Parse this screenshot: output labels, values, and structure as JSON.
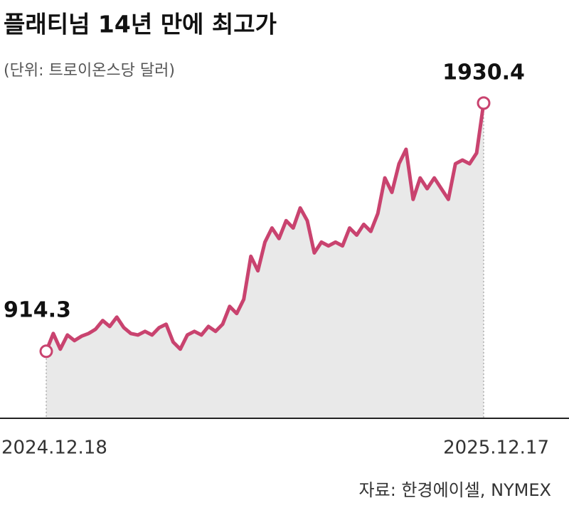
{
  "chart_data": {
    "type": "line",
    "title": "플래티넘 14년 만에 최고가",
    "subtitle": "(단위: 트로이온스당 달러)",
    "source": "자료: 한경에이셀, NYMEX",
    "categories": [
      "2024.12.18",
      null,
      null,
      null,
      null,
      null,
      null,
      null,
      null,
      null,
      null,
      null,
      null,
      null,
      null,
      null,
      null,
      null,
      null,
      null,
      null,
      null,
      null,
      null,
      null,
      null,
      null,
      null,
      null,
      null,
      null,
      null,
      null,
      null,
      null,
      null,
      null,
      null,
      null,
      null,
      null,
      null,
      null,
      null,
      null,
      null,
      null,
      null,
      null,
      null,
      null,
      null,
      null,
      null,
      null,
      null,
      null,
      null,
      null,
      null,
      null,
      null,
      "2025.12.17"
    ],
    "values": [
      914.3,
      987,
      923,
      981,
      958,
      976,
      987,
      1005,
      1040,
      1016,
      1054,
      1011,
      987,
      981,
      996,
      981,
      1011,
      1025,
      952,
      923,
      981,
      996,
      981,
      1016,
      996,
      1025,
      1098,
      1069,
      1127,
      1303,
      1244,
      1361,
      1419,
      1376,
      1449,
      1419,
      1501,
      1449,
      1317,
      1361,
      1346,
      1361,
      1346,
      1419,
      1390,
      1434,
      1405,
      1478,
      1624,
      1565,
      1682,
      1741,
      1536,
      1624,
      1580,
      1624,
      1580,
      1536,
      1682,
      1697,
      1682,
      1726,
      1930.4
    ],
    "color": "#c9436f",
    "area_color": "#e9e9e9",
    "ylim": [
      640,
      2000
    ]
  }
}
